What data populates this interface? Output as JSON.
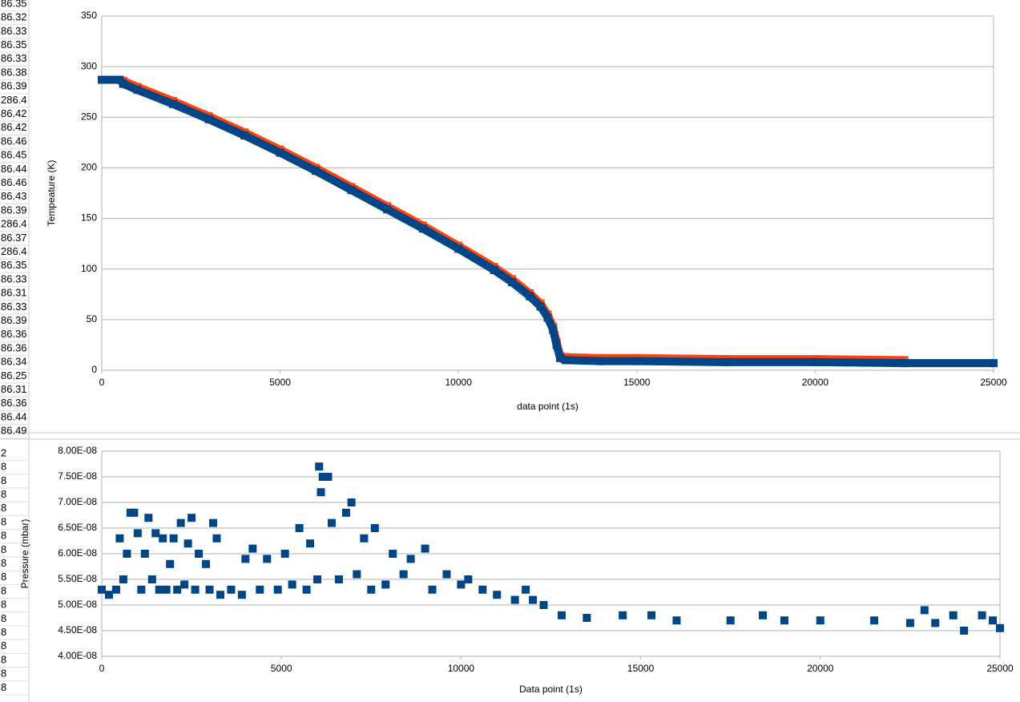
{
  "sheet": {
    "column_a_top": [
      "86.35",
      "86.32",
      "86.33",
      "86.35",
      "86.33",
      "86.38",
      "86.39",
      "286.4",
      "86.42",
      "86.42",
      "86.46",
      "86.45",
      "86.44",
      "86.46",
      "86.43",
      "86.39",
      "286.4",
      "86.37",
      "286.4",
      "86.35",
      "86.33",
      "86.31",
      "86.33",
      "86.39",
      "86.36",
      "86.36",
      "86.34",
      "86.25",
      "86.31",
      "86.36",
      "86.44",
      "86.49"
    ],
    "column_a_bottom": [
      "2",
      "8",
      "8",
      "8",
      "8",
      "8",
      "8",
      "8",
      "8",
      "8",
      "8",
      "8",
      "8",
      "8",
      "8",
      "8",
      "8",
      "8"
    ]
  },
  "chart_data": [
    {
      "type": "line",
      "y_label": "Tempeature (K)",
      "x_label": "data point (1s)",
      "xlim": [
        0,
        25000
      ],
      "xticks": [
        0,
        5000,
        10000,
        15000,
        20000,
        25000
      ],
      "ylim": [
        0,
        350
      ],
      "yticks": [
        0,
        50,
        100,
        150,
        200,
        250,
        300,
        350
      ],
      "grid": true,
      "series": [
        {
          "color": "#ff420e",
          "x": [
            500,
            600,
            1000,
            2000,
            3000,
            4000,
            5000,
            6000,
            7000,
            8000,
            9000,
            10000,
            11000,
            11500,
            12000,
            12300,
            12500,
            12650,
            12750,
            12850,
            13000,
            14000,
            15000,
            17500,
            20000,
            22500
          ],
          "values": [
            287,
            286,
            280,
            266,
            251,
            235,
            218,
            200,
            181,
            162,
            143,
            123,
            102,
            90,
            76,
            66,
            55,
            43,
            28,
            14,
            13,
            12,
            12,
            11,
            11,
            10
          ]
        },
        {
          "color": "#004586",
          "x": [
            0,
            250,
            500,
            600,
            1000,
            2000,
            3000,
            4000,
            5000,
            6000,
            7000,
            8000,
            9000,
            10000,
            11000,
            11500,
            12000,
            12300,
            12500,
            12650,
            12750,
            12850,
            13000,
            14000,
            15000,
            17500,
            20000,
            22500,
            25000
          ],
          "values": [
            287,
            287,
            287,
            283,
            277,
            263,
            248,
            232,
            215,
            197,
            178,
            159,
            140,
            120,
            99,
            87,
            73,
            63,
            52,
            40,
            25,
            12,
            10,
            9,
            9,
            8,
            8,
            7,
            7
          ]
        }
      ]
    },
    {
      "type": "scatter",
      "y_label": "Pressure (mbar)",
      "x_label": "Data point (1s)",
      "xlim": [
        0,
        25000
      ],
      "xticks": [
        0,
        5000,
        10000,
        15000,
        20000,
        25000
      ],
      "ylim": [
        4e-08,
        8e-08
      ],
      "yticks": [
        {
          "value": 4e-08,
          "label": "4.00E-08"
        },
        {
          "value": 4.5e-08,
          "label": "4.50E-08"
        },
        {
          "value": 5e-08,
          "label": "5.00E-08"
        },
        {
          "value": 5.5e-08,
          "label": "5.50E-08"
        },
        {
          "value": 6e-08,
          "label": "6.00E-08"
        },
        {
          "value": 6.5e-08,
          "label": "6.50E-08"
        },
        {
          "value": 7e-08,
          "label": "7.00E-08"
        },
        {
          "value": 7.5e-08,
          "label": "7.50E-08"
        },
        {
          "value": 8e-08,
          "label": "8.00E-08"
        }
      ],
      "grid": true,
      "series": [
        {
          "color": "#004586",
          "x": [
            0,
            200,
            400,
            500,
            600,
            700,
            800,
            900,
            1000,
            1100,
            1200,
            1300,
            1400,
            1500,
            1600,
            1700,
            1800,
            1900,
            2000,
            2100,
            2200,
            2300,
            2400,
            2500,
            2600,
            2700,
            2900,
            3000,
            3100,
            3200,
            3300,
            3600,
            3900,
            4000,
            4200,
            4400,
            4600,
            4900,
            5100,
            5300,
            5500,
            5700,
            5800,
            6000,
            6050,
            6100,
            6150,
            6300,
            6400,
            6600,
            6800,
            6950,
            7100,
            7300,
            7500,
            7600,
            7900,
            8100,
            8400,
            8600,
            9000,
            9200,
            9600,
            10000,
            10200,
            10600,
            11000,
            11500,
            11800,
            12000,
            12300,
            12800,
            13500,
            14500,
            15300,
            16000,
            17500,
            18400,
            19000,
            20000,
            21500,
            22500,
            22900,
            23200,
            23700,
            24000,
            24500,
            24800,
            25000
          ],
          "values": [
            5.3e-08,
            5.2e-08,
            5.3e-08,
            6.3e-08,
            5.5e-08,
            6e-08,
            6.8e-08,
            6.8e-08,
            6.4e-08,
            5.3e-08,
            6e-08,
            6.7e-08,
            5.5e-08,
            6.4e-08,
            5.3e-08,
            6.3e-08,
            5.3e-08,
            5.8e-08,
            6.3e-08,
            5.3e-08,
            6.6e-08,
            5.4e-08,
            6.2e-08,
            6.7e-08,
            5.3e-08,
            6e-08,
            5.8e-08,
            5.3e-08,
            6.6e-08,
            6.3e-08,
            5.2e-08,
            5.3e-08,
            5.2e-08,
            5.9e-08,
            6.1e-08,
            5.3e-08,
            5.9e-08,
            5.3e-08,
            6e-08,
            5.4e-08,
            6.5e-08,
            5.3e-08,
            6.2e-08,
            5.5e-08,
            7.7e-08,
            7.2e-08,
            7.5e-08,
            7.5e-08,
            6.6e-08,
            5.5e-08,
            6.8e-08,
            7e-08,
            5.6e-08,
            6.3e-08,
            5.3e-08,
            6.5e-08,
            5.4e-08,
            6e-08,
            5.6e-08,
            5.9e-08,
            6.1e-08,
            5.3e-08,
            5.6e-08,
            5.4e-08,
            5.5e-08,
            5.3e-08,
            5.2e-08,
            5.1e-08,
            5.3e-08,
            5.1e-08,
            5e-08,
            4.8e-08,
            4.75e-08,
            4.8e-08,
            4.8e-08,
            4.7e-08,
            4.7e-08,
            4.8e-08,
            4.7e-08,
            4.7e-08,
            4.7e-08,
            4.65e-08,
            4.9e-08,
            4.65e-08,
            4.8e-08,
            4.5e-08,
            4.8e-08,
            4.7e-08,
            4.55e-08
          ]
        }
      ]
    }
  ]
}
